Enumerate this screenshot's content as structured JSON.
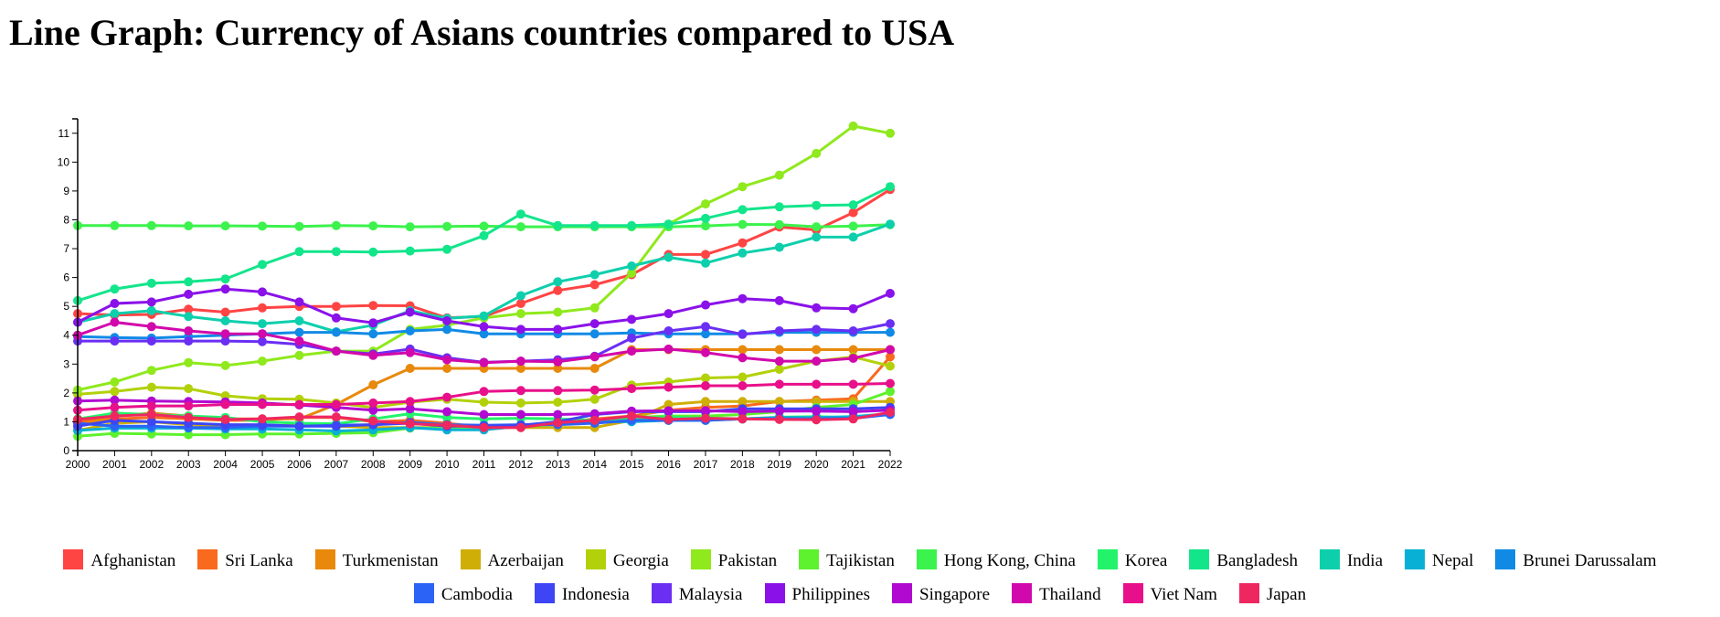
{
  "page": {
    "title": "Line Graph: Currency of Asians countries compared to USA"
  },
  "chart_data": {
    "type": "line",
    "title": "Line Graph: Currency of Asians countries compared to USA",
    "xlabel": "",
    "ylabel": "",
    "x": [
      2000,
      2001,
      2002,
      2003,
      2004,
      2005,
      2006,
      2007,
      2008,
      2009,
      2010,
      2011,
      2012,
      2013,
      2014,
      2015,
      2016,
      2017,
      2018,
      2019,
      2020,
      2021,
      2022
    ],
    "ylim": [
      0,
      11.5
    ],
    "yticks": [
      0,
      1,
      2,
      3,
      4,
      5,
      6,
      7,
      8,
      9,
      10,
      11
    ],
    "grid": false,
    "legend_position": "bottom",
    "series": [
      {
        "name": "Afghanistan",
        "color": "#ff4444",
        "values": [
          4.75,
          4.7,
          4.72,
          4.9,
          4.8,
          4.95,
          5.0,
          5.0,
          5.03,
          5.02,
          4.6,
          4.65,
          5.1,
          5.55,
          5.75,
          6.1,
          6.8,
          6.8,
          7.2,
          7.75,
          7.65,
          8.25,
          9.05
        ]
      },
      {
        "name": "Sri Lanka",
        "color": "#f96a1e",
        "values": [
          1.0,
          1.1,
          1.15,
          1.1,
          1.05,
          1.05,
          1.15,
          1.15,
          1.0,
          1.05,
          0.95,
          0.8,
          0.85,
          0.95,
          1.1,
          1.2,
          1.4,
          1.5,
          1.55,
          1.7,
          1.75,
          1.8,
          3.25
        ]
      },
      {
        "name": "Turkmenistan",
        "color": "#e8890c",
        "values": [
          0.85,
          1.2,
          1.3,
          1.2,
          1.1,
          1.1,
          1.1,
          1.6,
          2.28,
          2.85,
          2.85,
          2.85,
          2.85,
          2.85,
          2.85,
          3.5,
          3.5,
          3.5,
          3.5,
          3.5,
          3.5,
          3.5,
          3.5
        ]
      },
      {
        "name": "Azerbaijan",
        "color": "#cfae07",
        "values": [
          0.7,
          0.95,
          1.0,
          0.9,
          0.85,
          0.85,
          0.9,
          0.85,
          0.8,
          0.8,
          0.8,
          0.8,
          0.8,
          0.8,
          0.8,
          1.05,
          1.6,
          1.7,
          1.7,
          1.7,
          1.7,
          1.7,
          1.7
        ]
      },
      {
        "name": "Georgia",
        "color": "#b3d10a",
        "values": [
          1.95,
          2.05,
          2.2,
          2.15,
          1.9,
          1.8,
          1.78,
          1.65,
          1.5,
          1.68,
          1.78,
          1.68,
          1.65,
          1.68,
          1.78,
          2.27,
          2.38,
          2.52,
          2.55,
          2.82,
          3.1,
          3.25,
          2.93
        ]
      },
      {
        "name": "Pakistan",
        "color": "#8fe91c",
        "values": [
          2.1,
          2.38,
          2.78,
          3.05,
          2.95,
          3.1,
          3.3,
          3.45,
          3.45,
          4.2,
          4.35,
          4.6,
          4.75,
          4.8,
          4.95,
          6.15,
          7.85,
          8.55,
          9.15,
          9.55,
          10.3,
          11.25,
          11.0
        ]
      },
      {
        "name": "Tajikistan",
        "color": "#5ef12d",
        "values": [
          0.5,
          0.6,
          0.58,
          0.55,
          0.55,
          0.58,
          0.58,
          0.6,
          0.62,
          0.78,
          0.78,
          0.8,
          0.82,
          0.92,
          1.0,
          1.15,
          1.2,
          1.2,
          1.25,
          1.35,
          1.5,
          1.6,
          2.05
        ]
      },
      {
        "name": "Hong Kong, China",
        "color": "#3cf24c",
        "values": [
          7.8,
          7.8,
          7.8,
          7.79,
          7.79,
          7.78,
          7.77,
          7.8,
          7.79,
          7.76,
          7.77,
          7.78,
          7.76,
          7.76,
          7.76,
          7.76,
          7.76,
          7.79,
          7.84,
          7.83,
          7.76,
          7.78,
          7.83
        ]
      },
      {
        "name": "Korea",
        "color": "#22f36a",
        "values": [
          1.1,
          1.3,
          1.25,
          1.2,
          1.15,
          1.0,
          0.95,
          0.93,
          1.1,
          1.28,
          1.15,
          1.1,
          1.12,
          1.1,
          1.05,
          1.13,
          1.16,
          1.13,
          1.1,
          1.16,
          1.18,
          1.14,
          1.3
        ]
      },
      {
        "name": "Bangladesh",
        "color": "#13e58b",
        "values": [
          5.2,
          5.6,
          5.8,
          5.85,
          5.95,
          6.45,
          6.9,
          6.9,
          6.88,
          6.92,
          6.98,
          7.45,
          8.2,
          7.8,
          7.8,
          7.8,
          7.85,
          8.05,
          8.35,
          8.45,
          8.5,
          8.52,
          9.15
        ]
      },
      {
        "name": "India",
        "color": "#0ecfac",
        "values": [
          4.45,
          4.75,
          4.85,
          4.65,
          4.5,
          4.4,
          4.5,
          4.12,
          4.35,
          4.85,
          4.58,
          4.67,
          5.37,
          5.85,
          6.1,
          6.4,
          6.7,
          6.5,
          6.85,
          7.05,
          7.4,
          7.4,
          7.85
        ]
      },
      {
        "name": "Nepal",
        "color": "#07b0d4",
        "values": [
          0.7,
          0.78,
          0.78,
          0.78,
          0.75,
          0.75,
          0.72,
          0.68,
          0.72,
          0.8,
          0.72,
          0.72,
          0.85,
          0.95,
          1.0,
          1.0,
          1.05,
          1.05,
          1.1,
          1.15,
          1.15,
          1.18,
          1.28
        ]
      },
      {
        "name": "Brunei Darussalam",
        "color": "#118ae6",
        "values": [
          3.95,
          3.92,
          3.9,
          3.95,
          4.0,
          4.05,
          4.1,
          4.1,
          4.05,
          4.15,
          4.2,
          4.05,
          4.05,
          4.05,
          4.05,
          4.08,
          4.05,
          4.05,
          4.05,
          4.1,
          4.1,
          4.1,
          4.1
        ]
      },
      {
        "name": "Cambodia",
        "color": "#2b63f7",
        "values": [
          0.95,
          0.85,
          0.85,
          0.8,
          0.8,
          0.85,
          0.85,
          0.88,
          0.9,
          0.98,
          0.9,
          0.88,
          0.9,
          0.9,
          0.95,
          1.05,
          1.05,
          1.05,
          1.1,
          1.1,
          1.1,
          1.12,
          1.25
        ]
      },
      {
        "name": "Indonesia",
        "color": "#3e45f4",
        "values": [
          0.85,
          1.05,
          1.0,
          0.95,
          0.9,
          0.9,
          0.85,
          0.85,
          0.9,
          0.95,
          0.85,
          0.85,
          0.88,
          1.0,
          1.25,
          1.35,
          1.35,
          1.35,
          1.45,
          1.45,
          1.45,
          1.45,
          1.5
        ]
      },
      {
        "name": "Malaysia",
        "color": "#6a2ff3",
        "values": [
          3.8,
          3.8,
          3.8,
          3.8,
          3.8,
          3.78,
          3.68,
          3.45,
          3.35,
          3.52,
          3.22,
          3.06,
          3.1,
          3.15,
          3.27,
          3.9,
          4.15,
          4.3,
          4.03,
          4.15,
          4.2,
          4.15,
          4.4
        ]
      },
      {
        "name": "Philippines",
        "color": "#8a12e9",
        "values": [
          4.45,
          5.1,
          5.15,
          5.42,
          5.6,
          5.5,
          5.15,
          4.6,
          4.43,
          4.8,
          4.5,
          4.3,
          4.2,
          4.2,
          4.4,
          4.55,
          4.75,
          5.05,
          5.27,
          5.2,
          4.95,
          4.92,
          5.45
        ]
      },
      {
        "name": "Singapore",
        "color": "#b00ad1",
        "values": [
          1.72,
          1.75,
          1.72,
          1.7,
          1.69,
          1.65,
          1.58,
          1.5,
          1.4,
          1.45,
          1.35,
          1.25,
          1.25,
          1.25,
          1.28,
          1.37,
          1.38,
          1.38,
          1.35,
          1.37,
          1.37,
          1.35,
          1.4
        ]
      },
      {
        "name": "Thailand",
        "color": "#d108ab",
        "values": [
          4.0,
          4.45,
          4.3,
          4.15,
          4.05,
          4.05,
          3.8,
          3.45,
          3.3,
          3.4,
          3.15,
          3.05,
          3.1,
          3.08,
          3.25,
          3.45,
          3.52,
          3.4,
          3.22,
          3.1,
          3.1,
          3.2,
          3.5
        ]
      },
      {
        "name": "Viet Nam",
        "color": "#e8108a",
        "values": [
          1.4,
          1.5,
          1.55,
          1.55,
          1.6,
          1.6,
          1.6,
          1.6,
          1.65,
          1.7,
          1.85,
          2.05,
          2.08,
          2.08,
          2.1,
          2.15,
          2.2,
          2.25,
          2.25,
          2.3,
          2.3,
          2.3,
          2.33
        ]
      },
      {
        "name": "Japan",
        "color": "#ef2761",
        "values": [
          1.08,
          1.2,
          1.25,
          1.15,
          1.08,
          1.1,
          1.17,
          1.17,
          1.03,
          0.93,
          0.88,
          0.8,
          0.8,
          0.97,
          1.05,
          1.2,
          1.08,
          1.12,
          1.1,
          1.08,
          1.07,
          1.1,
          1.33
        ]
      }
    ]
  }
}
